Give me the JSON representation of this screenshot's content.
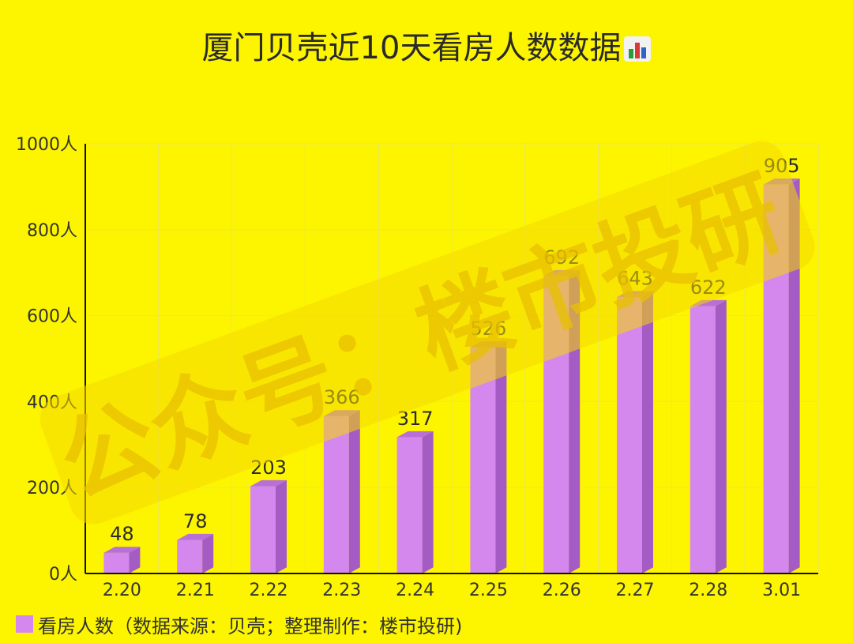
{
  "title": "厦门贝壳近10天看房人数数据",
  "title_icon": "bar-chart-emoji-icon",
  "watermark": "公众号：楼市投研",
  "legend": {
    "label": "看房人数（数据来源：贝壳；整理制作：楼市投研)",
    "color": "#d488ee"
  },
  "colors": {
    "background": "#fdf500",
    "bar_front": "#d488ee",
    "bar_side": "#a45bc4",
    "bar_top": "#b870d8",
    "grid": "#e7e26a",
    "axis": "#111111"
  },
  "chart_data": {
    "type": "bar",
    "categories": [
      "2.20",
      "2.21",
      "2.22",
      "2.23",
      "2.24",
      "2.25",
      "2.26",
      "2.27",
      "2.28",
      "3.01"
    ],
    "series": [
      {
        "name": "看房人数",
        "values": [
          48,
          78,
          203,
          366,
          317,
          526,
          692,
          643,
          622,
          905
        ]
      }
    ],
    "ylim": [
      0,
      1000
    ],
    "yticks": [
      {
        "value": 0,
        "label": "0人"
      },
      {
        "value": 200,
        "label": "200人"
      },
      {
        "value": 400,
        "label": "400人"
      },
      {
        "value": 600,
        "label": "600人"
      },
      {
        "value": 800,
        "label": "800人"
      },
      {
        "value": 1000,
        "label": "1000人"
      }
    ],
    "grid": true,
    "legend_position": "bottom-left",
    "bar_style": "3d"
  }
}
